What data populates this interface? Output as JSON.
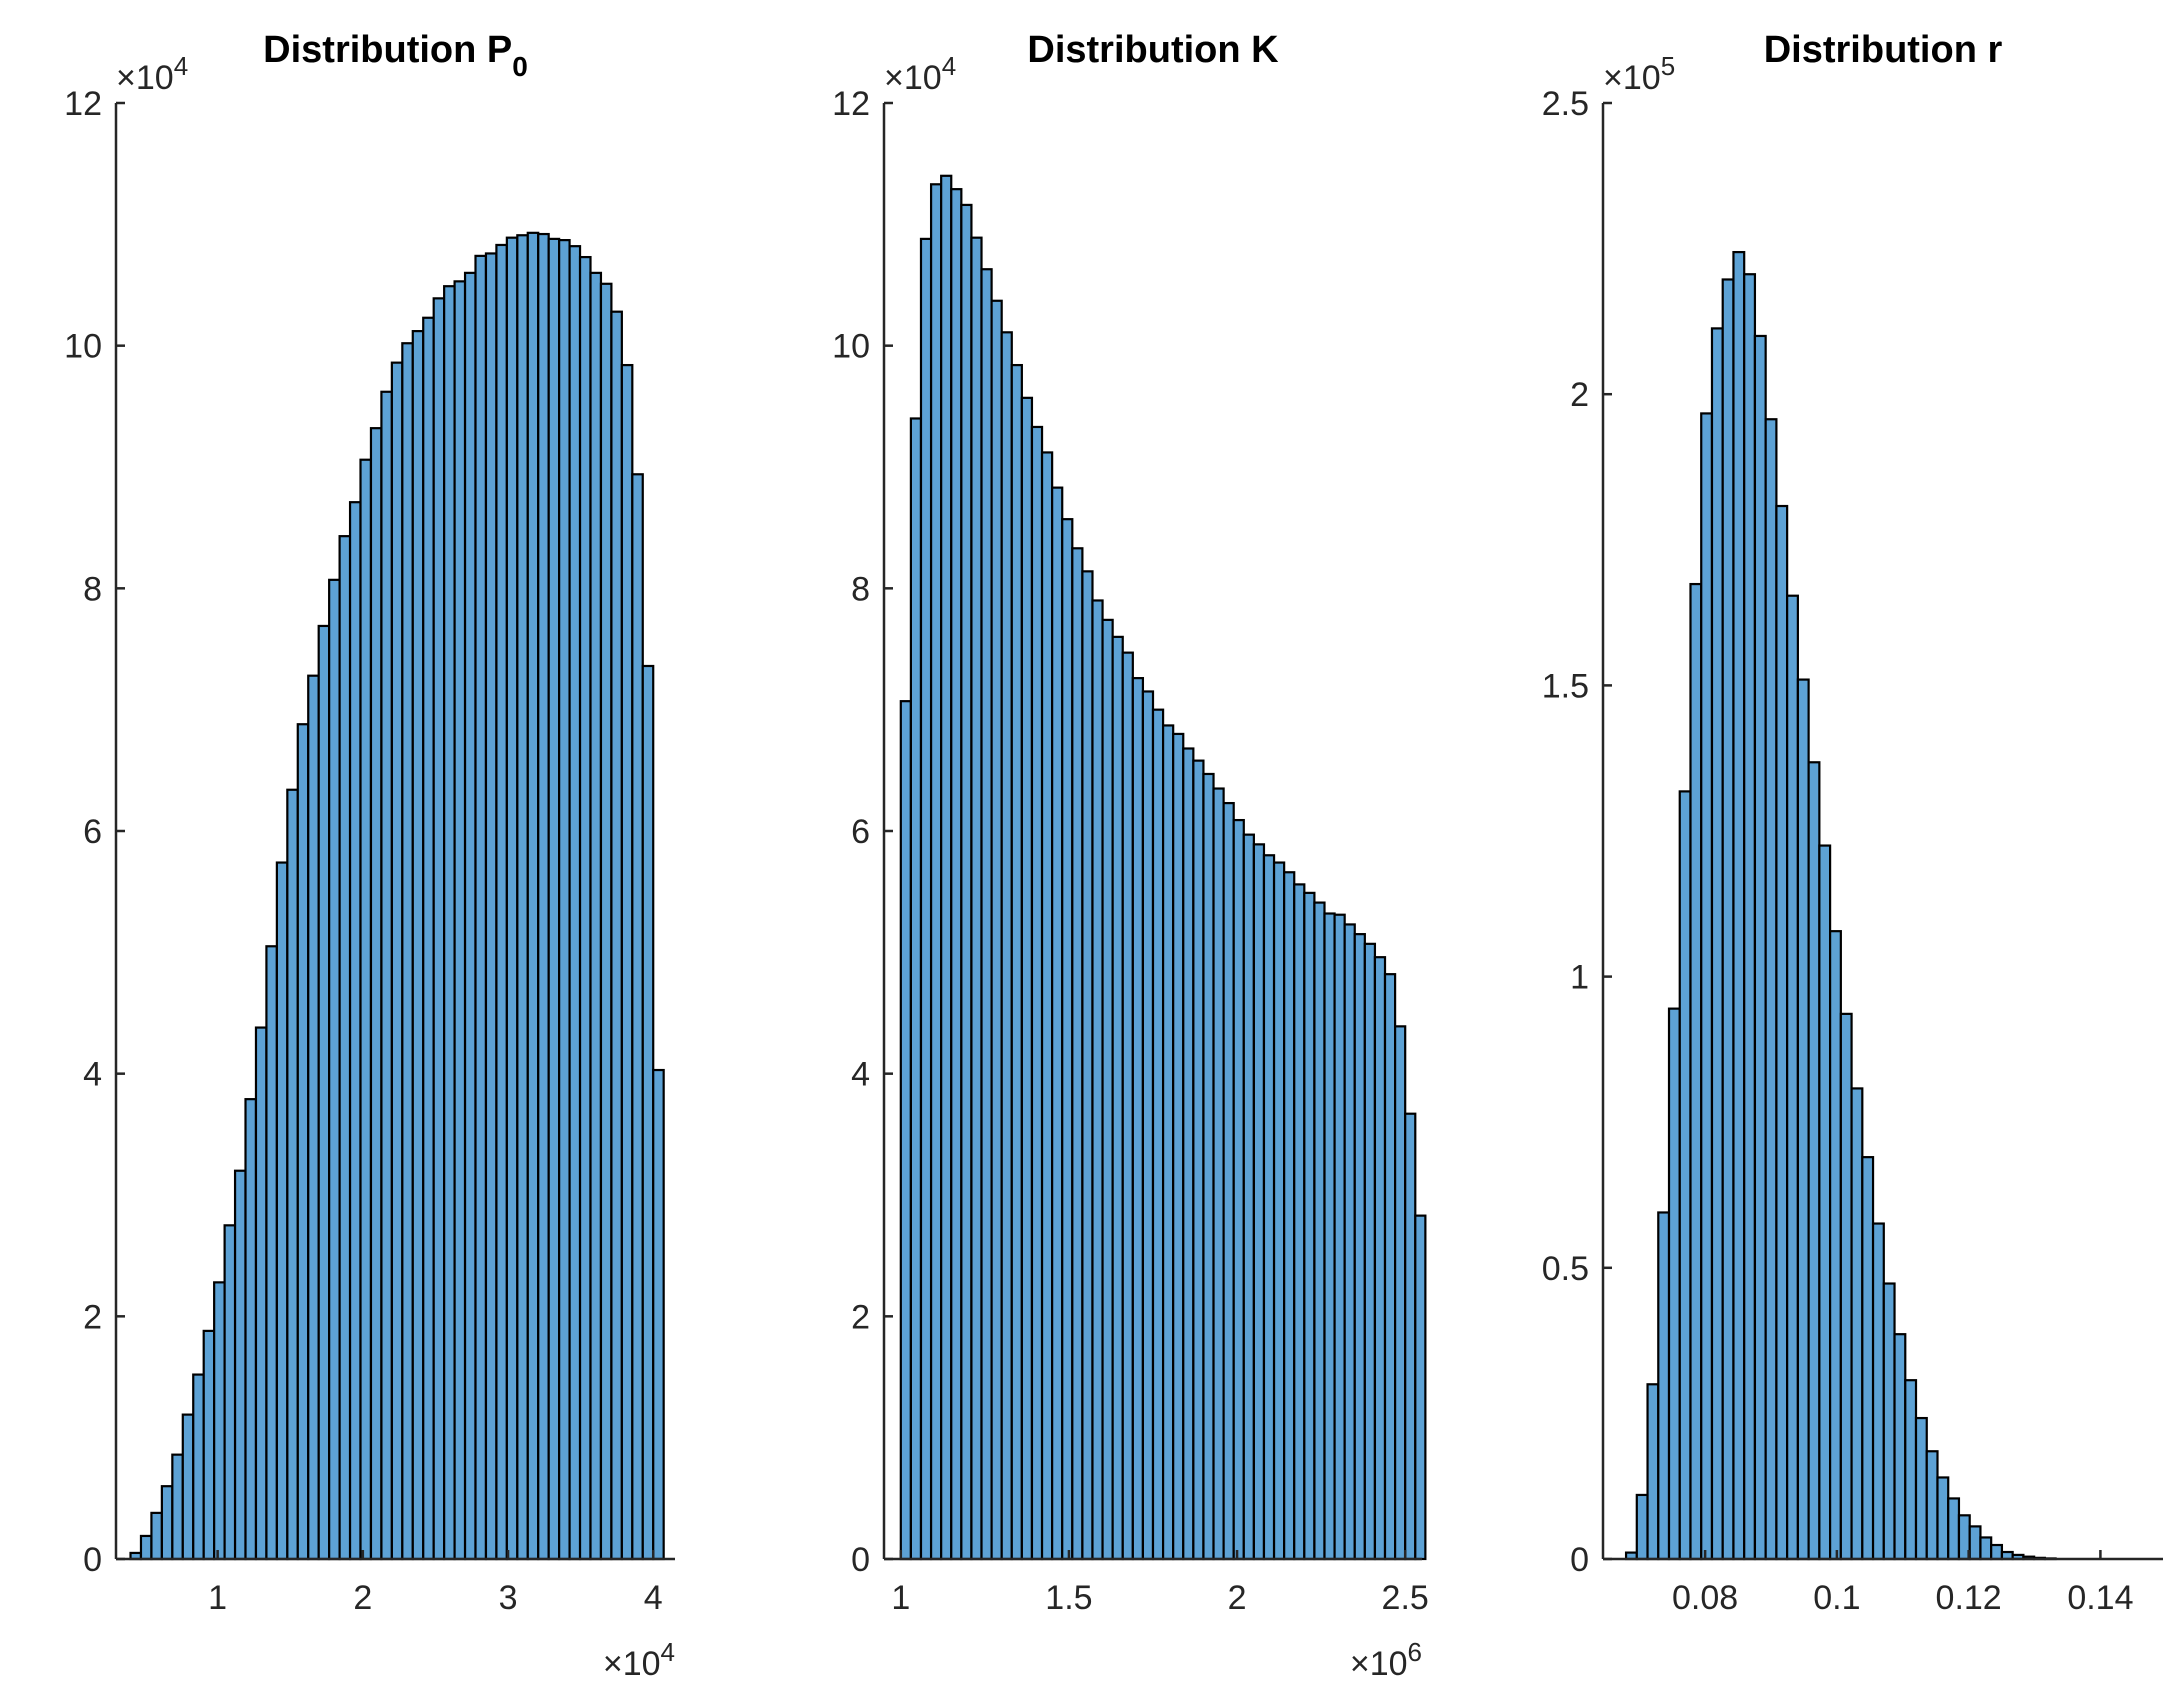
{
  "colors": {
    "bar_fill": "#5da2d5",
    "bar_edge": "#000000",
    "axis": "#262626"
  },
  "chart_data": [
    {
      "type": "bar",
      "title": "Distribution P",
      "title_subscript": "0",
      "x_range": [
        3000,
        41500
      ],
      "x_ticks": [
        10000,
        20000,
        30000,
        40000
      ],
      "x_tick_labels": [
        "1",
        "2",
        "3",
        "4"
      ],
      "x_multiplier": "×10",
      "x_multiplier_exp": "4",
      "ylim": [
        0,
        120000
      ],
      "y_ticks": [
        0,
        20000,
        40000,
        60000,
        80000,
        100000,
        120000
      ],
      "y_tick_labels": [
        "0",
        "2",
        "4",
        "6",
        "8",
        "10",
        "12"
      ],
      "y_multiplier": "×10",
      "y_multiplier_exp": "4",
      "bin_edges_start": 4000,
      "bin_width": 720,
      "values": [
        500,
        1900,
        3800,
        6000,
        8600,
        11900,
        15200,
        18800,
        22800,
        27500,
        32000,
        37900,
        43800,
        50500,
        57400,
        63400,
        68800,
        72800,
        76900,
        80700,
        84300,
        87100,
        90600,
        93200,
        96200,
        98600,
        100200,
        101200,
        102300,
        103900,
        104900,
        105300,
        106000,
        107400,
        107600,
        108300,
        108900,
        109100,
        109300,
        109200,
        108800,
        108700,
        108200,
        107300,
        106000,
        105100,
        102800,
        98400,
        89400,
        73600,
        40300
      ]
    },
    {
      "type": "bar",
      "title": "Distribution K",
      "x_range": [
        950000,
        2550000
      ],
      "x_ticks": [
        1000000,
        1500000,
        2000000,
        2500000
      ],
      "x_tick_labels": [
        "1",
        "1.5",
        "2",
        "2.5"
      ],
      "x_multiplier": "×10",
      "x_multiplier_exp": "6",
      "ylim": [
        0,
        120000
      ],
      "y_ticks": [
        0,
        20000,
        40000,
        60000,
        80000,
        100000,
        120000
      ],
      "y_tick_labels": [
        "0",
        "2",
        "4",
        "6",
        "8",
        "10",
        "12"
      ],
      "y_multiplier": "×10",
      "y_multiplier_exp": "4",
      "bin_edges_start": 1000000,
      "bin_width": 30000,
      "values": [
        70700,
        94000,
        108800,
        113300,
        114000,
        112900,
        111600,
        108900,
        106300,
        103700,
        101100,
        98400,
        95700,
        93300,
        91200,
        88300,
        85700,
        83300,
        81400,
        79000,
        77400,
        76000,
        74700,
        72600,
        71500,
        70000,
        68700,
        68000,
        66800,
        65800,
        64700,
        63500,
        62300,
        60900,
        59700,
        58900,
        58000,
        57400,
        56600,
        55600,
        54900,
        54100,
        53200,
        53100,
        52300,
        51500,
        50700,
        49600,
        48200,
        43900,
        36700,
        28300
      ]
    },
    {
      "type": "bar",
      "title": "Distribution r",
      "x_range": [
        0.0645,
        0.1495
      ],
      "x_ticks": [
        0.08,
        0.1,
        0.12,
        0.14
      ],
      "x_tick_labels": [
        "0.08",
        "0.1",
        "0.12",
        "0.14"
      ],
      "ylim": [
        0,
        250000
      ],
      "y_ticks": [
        0,
        50000,
        100000,
        150000,
        200000,
        250000
      ],
      "y_tick_labels": [
        "0",
        "0.5",
        "1",
        "1.5",
        "2",
        "2.5"
      ],
      "y_multiplier": "×10",
      "y_multiplier_exp": "5",
      "bin_edges_start": 0.068,
      "bin_width": 0.00163,
      "values": [
        1100,
        11000,
        30000,
        59500,
        94500,
        131800,
        167400,
        196700,
        211300,
        219700,
        224400,
        220600,
        210000,
        195700,
        180800,
        165400,
        151000,
        136800,
        122500,
        107800,
        93600,
        80800,
        69000,
        57600,
        47300,
        38600,
        30700,
        24200,
        18500,
        14000,
        10400,
        7500,
        5600,
        3700,
        2400,
        1200,
        700,
        400,
        200,
        100
      ]
    }
  ]
}
